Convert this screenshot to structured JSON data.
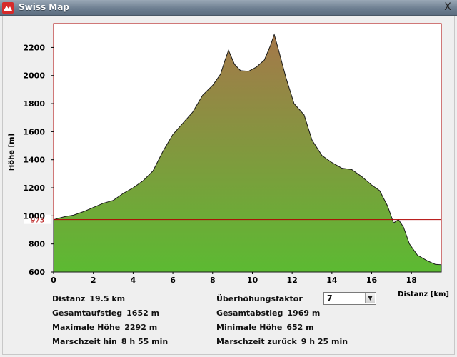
{
  "window": {
    "title": "Swiss Map",
    "close_label": "X",
    "icon": "swiss-map-app-icon"
  },
  "colors": {
    "profile_top": "#a5784a",
    "profile_bottom": "#5cba32",
    "reference_line": "#b00000",
    "plot_border": "#b00000"
  },
  "chart_data": {
    "type": "area",
    "xlabel": "Distanz [km]",
    "ylabel": "Höhe [m]",
    "xlim": [
      0,
      19.5
    ],
    "ylim": [
      600,
      2370
    ],
    "x_ticks": [
      "0",
      "2",
      "4",
      "6",
      "8",
      "10",
      "12",
      "14",
      "16",
      "18"
    ],
    "y_ticks": [
      "600",
      "800",
      "1000",
      "1200",
      "1400",
      "1600",
      "1800",
      "2000",
      "2200"
    ],
    "reference_line": {
      "value": 973,
      "label": "973"
    },
    "grid": false,
    "series": [
      {
        "points": [
          [
            0.0,
            973
          ],
          [
            0.3,
            985
          ],
          [
            0.6,
            995
          ],
          [
            1.0,
            1005
          ],
          [
            1.5,
            1030
          ],
          [
            2.0,
            1060
          ],
          [
            2.5,
            1090
          ],
          [
            3.0,
            1110
          ],
          [
            3.5,
            1160
          ],
          [
            4.0,
            1200
          ],
          [
            4.5,
            1250
          ],
          [
            5.0,
            1320
          ],
          [
            5.5,
            1460
          ],
          [
            6.0,
            1580
          ],
          [
            6.5,
            1660
          ],
          [
            7.0,
            1740
          ],
          [
            7.5,
            1860
          ],
          [
            8.0,
            1930
          ],
          [
            8.4,
            2010
          ],
          [
            8.6,
            2100
          ],
          [
            8.8,
            2180
          ],
          [
            9.1,
            2080
          ],
          [
            9.4,
            2035
          ],
          [
            9.8,
            2030
          ],
          [
            10.2,
            2060
          ],
          [
            10.6,
            2110
          ],
          [
            10.9,
            2210
          ],
          [
            11.1,
            2292
          ],
          [
            11.3,
            2190
          ],
          [
            11.7,
            1980
          ],
          [
            12.1,
            1800
          ],
          [
            12.6,
            1720
          ],
          [
            13.0,
            1540
          ],
          [
            13.5,
            1430
          ],
          [
            14.0,
            1380
          ],
          [
            14.5,
            1340
          ],
          [
            15.0,
            1330
          ],
          [
            15.5,
            1280
          ],
          [
            16.0,
            1220
          ],
          [
            16.4,
            1180
          ],
          [
            16.8,
            1070
          ],
          [
            17.1,
            950
          ],
          [
            17.35,
            973
          ],
          [
            17.6,
            920
          ],
          [
            17.9,
            800
          ],
          [
            18.3,
            720
          ],
          [
            18.8,
            680
          ],
          [
            19.2,
            655
          ],
          [
            19.5,
            652
          ]
        ]
      }
    ]
  },
  "stats": {
    "distance_label": "Distanz",
    "distance_value": "19.5 km",
    "ascent_label": "Gesamtaufstieg",
    "ascent_value": "1652 m",
    "max_label": "Maximale Höhe",
    "max_value": "2292 m",
    "time_out_label": "Marschzeit hin",
    "time_out_value": "8 h 55 min",
    "factor_label": "Überhöhungsfaktor",
    "factor_value": "7",
    "descent_label": "Gesamtabstieg",
    "descent_value": "1969 m",
    "min_label": "Minimale Höhe",
    "min_value": "652 m",
    "time_back_label": "Marschzeit zurück",
    "time_back_value": "9 h 25 min"
  }
}
